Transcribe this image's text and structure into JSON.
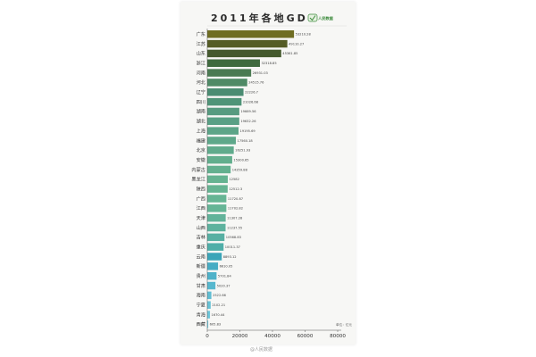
{
  "chart_data": {
    "type": "bar",
    "orientation": "horizontal",
    "title": "2011年各地GDP",
    "unit_label": "单位：亿元",
    "categories": [
      "广东",
      "江苏",
      "山东",
      "浙江",
      "河南",
      "河北",
      "辽宁",
      "四川",
      "湖南",
      "湖北",
      "上海",
      "福建",
      "北京",
      "安徽",
      "内蒙古",
      "黑龙江",
      "陕西",
      "广西",
      "江西",
      "天津",
      "山西",
      "吉林",
      "重庆",
      "云南",
      "新疆",
      "贵州",
      "甘肃",
      "海南",
      "宁夏",
      "青海",
      "西藏"
    ],
    "values": [
      53210.28,
      49110.27,
      45361.85,
      32318.85,
      26931.03,
      24515.76,
      22226.7,
      21026.68,
      19669.56,
      19632.26,
      19195.69,
      17560.18,
      16251.93,
      15300.65,
      14359.88,
      12582,
      12512.3,
      11720.87,
      11702.82,
      11307.28,
      11237.55,
      10568.83,
      10011.37,
      8893.12,
      6610.05,
      5701.84,
      5020.37,
      2522.66,
      2102.21,
      1670.44,
      605.83
    ],
    "value_labels": [
      "53210.28",
      "49110.27",
      "45361.85",
      "32318.85",
      "26931.03",
      "24515.76",
      "22226.7",
      "21026.68",
      "19669.56",
      "19632.26",
      "19195.69",
      "17560.18",
      "16251.93",
      "15300.65",
      "14359.88",
      "12582",
      "12512.3",
      "11720.87",
      "11702.82",
      "11307.28",
      "11237.55",
      "10568.83",
      "10011.37",
      "8893.12",
      "6610.05",
      "5701.84",
      "5020.37",
      "2522.66",
      "2102.21",
      "1670.44",
      "605.83"
    ],
    "bar_colors": [
      "#6f6d22",
      "#555c25",
      "#44592d",
      "#3f6a3e",
      "#4a7a52",
      "#4f8a66",
      "#4a8c72",
      "#4f9478",
      "#579b80",
      "#59a085",
      "#5ca588",
      "#5ea88a",
      "#60ab8c",
      "#62ae8d",
      "#64b08f",
      "#66b391",
      "#66b492",
      "#66b594",
      "#65b596",
      "#62b39a",
      "#5db29e",
      "#57b0a3",
      "#4faea8",
      "#3aa5b8",
      "#46acc4",
      "#4eb2c9",
      "#57b8ce",
      "#5fbdd2",
      "#66c2d6",
      "#6cc6da",
      "#72cbde"
    ],
    "xlim": [
      0,
      80000
    ],
    "xticks": [
      "0",
      "20000",
      "40000",
      "60000",
      "80000"
    ],
    "grid": false,
    "legend": "none"
  },
  "brand": {
    "name": "人民数据",
    "accent": "#3b8a3b"
  },
  "watermark": "@人民数据"
}
